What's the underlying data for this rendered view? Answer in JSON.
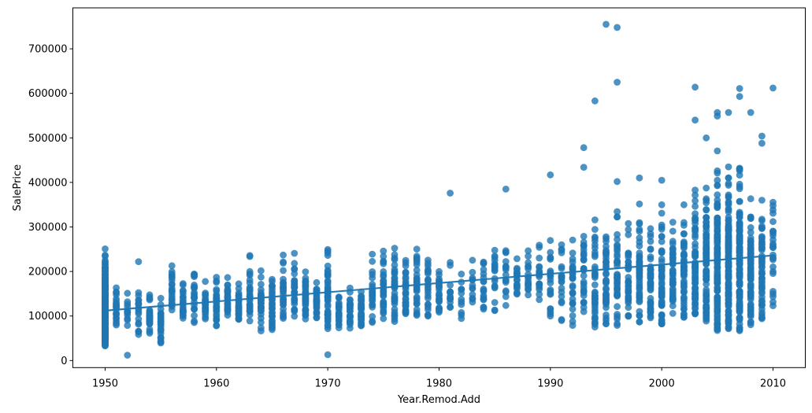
{
  "chart_data": {
    "type": "scatter",
    "title": "",
    "xlabel": "Year.Remod.Add",
    "ylabel": "SalePrice",
    "xlim": [
      1947.1,
      2012.9
    ],
    "ylim": [
      -15900,
      792000
    ],
    "xticks": [
      1950,
      1960,
      1970,
      1980,
      1990,
      2000,
      2010
    ],
    "yticks": [
      0,
      100000,
      200000,
      300000,
      400000,
      500000,
      600000,
      700000
    ],
    "grid": false,
    "legend": "none",
    "point_color": "#1f77b4",
    "point_opacity": 0.8,
    "line_color": "#1f77b4",
    "regression_line": {
      "x1": 1950,
      "y1": 112000,
      "x2": 2010,
      "y2": 236000
    },
    "seed": 7,
    "year_clusters": [
      [
        1950,
        310,
        33000,
        262000,
        1.9
      ],
      [
        1951,
        22,
        78000,
        167000
      ],
      [
        1952,
        12,
        78000,
        162000
      ],
      [
        1953,
        18,
        58000,
        182000
      ],
      [
        1954,
        30,
        60000,
        157000
      ],
      [
        1955,
        26,
        35000,
        167000
      ],
      [
        1956,
        24,
        78000,
        238000
      ],
      [
        1957,
        24,
        89000,
        186000
      ],
      [
        1958,
        26,
        76000,
        251000
      ],
      [
        1959,
        26,
        80000,
        187000
      ],
      [
        1960,
        30,
        76000,
        214000
      ],
      [
        1961,
        24,
        99000,
        205000
      ],
      [
        1962,
        30,
        88000,
        186000
      ],
      [
        1963,
        30,
        85000,
        257000
      ],
      [
        1964,
        30,
        65000,
        226000
      ],
      [
        1965,
        30,
        60000,
        231000
      ],
      [
        1966,
        28,
        89000,
        275000
      ],
      [
        1967,
        30,
        74000,
        278000
      ],
      [
        1968,
        34,
        84000,
        230000
      ],
      [
        1969,
        28,
        94000,
        215000
      ],
      [
        1970,
        46,
        70000,
        270000
      ],
      [
        1971,
        22,
        72000,
        176000
      ],
      [
        1972,
        30,
        70000,
        186000
      ],
      [
        1973,
        30,
        74000,
        196000
      ],
      [
        1974,
        26,
        79000,
        259000
      ],
      [
        1975,
        30,
        80000,
        278000
      ],
      [
        1976,
        34,
        76000,
        278000
      ],
      [
        1977,
        34,
        89000,
        251000
      ],
      [
        1978,
        30,
        94000,
        262000
      ],
      [
        1979,
        24,
        99000,
        259000
      ],
      [
        1980,
        24,
        95000,
        277000
      ],
      [
        1981,
        14,
        99000,
        232000
      ],
      [
        1982,
        12,
        94000,
        239000
      ],
      [
        1983,
        12,
        108000,
        256000
      ],
      [
        1984,
        18,
        113000,
        252000
      ],
      [
        1985,
        18,
        110000,
        315000
      ],
      [
        1986,
        16,
        118000,
        320000
      ],
      [
        1987,
        18,
        120000,
        300000
      ],
      [
        1988,
        18,
        125000,
        305000
      ],
      [
        1989,
        18,
        128000,
        280000
      ],
      [
        1990,
        22,
        80000,
        340000
      ],
      [
        1991,
        20,
        81000,
        320000
      ],
      [
        1992,
        28,
        64000,
        310000
      ],
      [
        1993,
        30,
        85000,
        365000
      ],
      [
        1994,
        40,
        68000,
        330000
      ],
      [
        1995,
        42,
        82000,
        355000
      ],
      [
        1996,
        40,
        61000,
        360000
      ],
      [
        1997,
        36,
        95000,
        345000
      ],
      [
        1998,
        46,
        73000,
        375000
      ],
      [
        1999,
        42,
        84000,
        340000
      ],
      [
        2000,
        56,
        61000,
        370000
      ],
      [
        2001,
        48,
        85000,
        345000
      ],
      [
        2002,
        56,
        86000,
        390000
      ],
      [
        2003,
        70,
        88000,
        400000
      ],
      [
        2004,
        86,
        84000,
        420000
      ],
      [
        2005,
        120,
        63000,
        475000
      ],
      [
        2006,
        140,
        62000,
        470000
      ],
      [
        2007,
        130,
        64000,
        480000
      ],
      [
        2008,
        75,
        80000,
        410000
      ],
      [
        2009,
        55,
        90000,
        390000
      ],
      [
        2010,
        26,
        118000,
        400000
      ]
    ],
    "outliers": [
      [
        1952,
        12000
      ],
      [
        1953,
        222000
      ],
      [
        1970,
        13000
      ],
      [
        1981,
        376000
      ],
      [
        1986,
        385000
      ],
      [
        1990,
        417000
      ],
      [
        1993,
        478000
      ],
      [
        1993,
        434000
      ],
      [
        1994,
        583000
      ],
      [
        1995,
        755000
      ],
      [
        1996,
        748000
      ],
      [
        1996,
        625000
      ],
      [
        1996,
        402000
      ],
      [
        1998,
        410000
      ],
      [
        2000,
        405000
      ],
      [
        2003,
        614000
      ],
      [
        2003,
        540000
      ],
      [
        2004,
        500000
      ],
      [
        2005,
        557000
      ],
      [
        2005,
        549000
      ],
      [
        2006,
        557000
      ],
      [
        2007,
        611000
      ],
      [
        2007,
        593000
      ],
      [
        2008,
        557000
      ],
      [
        2009,
        504000
      ],
      [
        2009,
        488000
      ],
      [
        2010,
        612000
      ]
    ]
  }
}
